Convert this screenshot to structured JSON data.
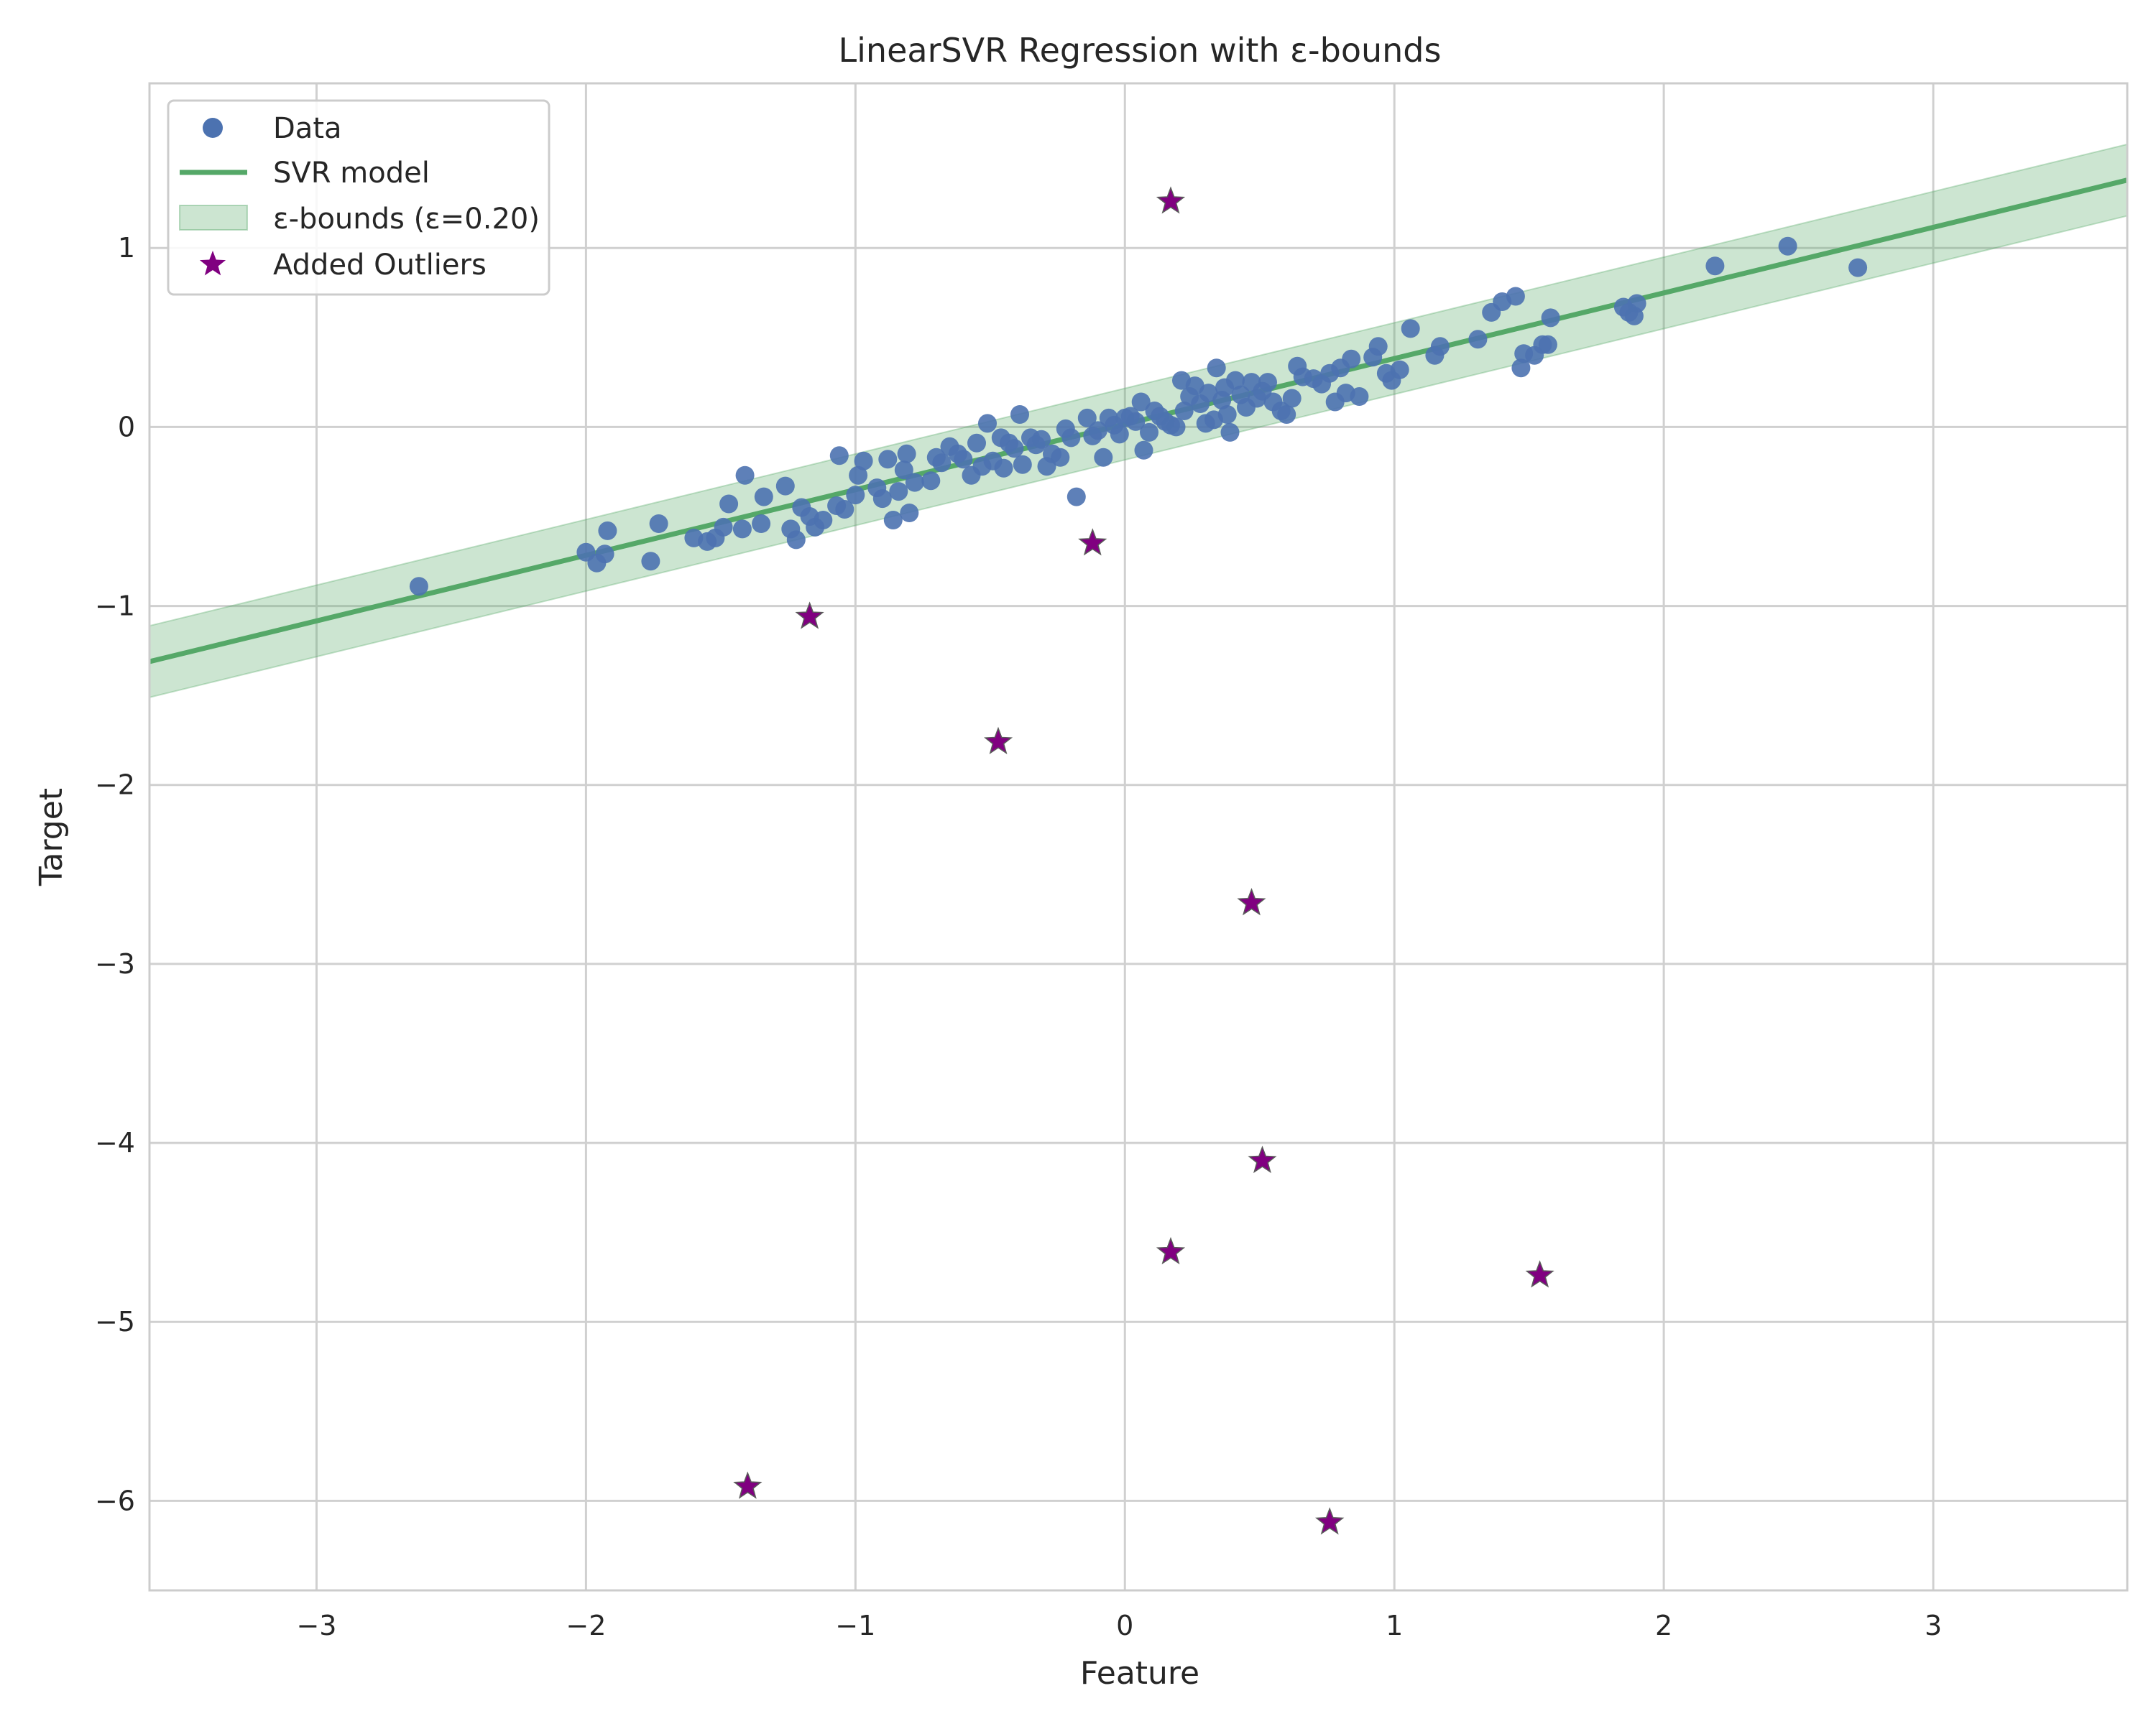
{
  "chart_data": {
    "type": "scatter",
    "title": "LinearSVR Regression with ε-bounds",
    "xlabel": "Feature",
    "ylabel": "Target",
    "xlim": [
      -3.62,
      3.72
    ],
    "ylim": [
      -6.5,
      1.92
    ],
    "xticks": [
      -3,
      -2,
      -1,
      0,
      1,
      2,
      3
    ],
    "xtick_labels": [
      "−3",
      "−2",
      "−1",
      "0",
      "1",
      "2",
      "3"
    ],
    "yticks": [
      1,
      0,
      -1,
      -2,
      -3,
      -4,
      -5,
      -6
    ],
    "ytick_labels": [
      "1",
      "0",
      "−1",
      "−2",
      "−3",
      "−4",
      "−5",
      "−6"
    ],
    "grid": true,
    "legend_position": "top-left",
    "colors": {
      "data": "#4c72b0",
      "model": "#55a868",
      "band": "#55a868",
      "outliers": "#800080",
      "grid": "#d0d0d0",
      "axes": "#cccccc"
    },
    "model": {
      "slope": 0.3665,
      "intercept": 0.016,
      "epsilon": 0.2
    },
    "series": [
      {
        "name": "Data",
        "type": "scatter",
        "points": [
          [
            -2.62,
            -0.89
          ],
          [
            -2.0,
            -0.7
          ],
          [
            -1.96,
            -0.76
          ],
          [
            -1.93,
            -0.71
          ],
          [
            -1.92,
            -0.58
          ],
          [
            -1.76,
            -0.75
          ],
          [
            -1.73,
            -0.54
          ],
          [
            -1.6,
            -0.62
          ],
          [
            -1.55,
            -0.64
          ],
          [
            -1.52,
            -0.62
          ],
          [
            -1.49,
            -0.56
          ],
          [
            -1.47,
            -0.43
          ],
          [
            -1.42,
            -0.57
          ],
          [
            -1.41,
            -0.27
          ],
          [
            -1.35,
            -0.54
          ],
          [
            -1.34,
            -0.39
          ],
          [
            -1.26,
            -0.33
          ],
          [
            -1.24,
            -0.57
          ],
          [
            -1.22,
            -0.63
          ],
          [
            -1.2,
            -0.45
          ],
          [
            -1.17,
            -0.5
          ],
          [
            -1.15,
            -0.56
          ],
          [
            -1.12,
            -0.52
          ],
          [
            -1.07,
            -0.44
          ],
          [
            -1.06,
            -0.16
          ],
          [
            -1.04,
            -0.46
          ],
          [
            -1.0,
            -0.38
          ],
          [
            -0.99,
            -0.27
          ],
          [
            -0.97,
            -0.19
          ],
          [
            -0.92,
            -0.34
          ],
          [
            -0.9,
            -0.4
          ],
          [
            -0.88,
            -0.18
          ],
          [
            -0.86,
            -0.52
          ],
          [
            -0.84,
            -0.36
          ],
          [
            -0.82,
            -0.24
          ],
          [
            -0.81,
            -0.15
          ],
          [
            -0.8,
            -0.48
          ],
          [
            -0.78,
            -0.31
          ],
          [
            -0.72,
            -0.3
          ],
          [
            -0.7,
            -0.17
          ],
          [
            -0.68,
            -0.2
          ],
          [
            -0.65,
            -0.11
          ],
          [
            -0.62,
            -0.15
          ],
          [
            -0.6,
            -0.18
          ],
          [
            -0.57,
            -0.27
          ],
          [
            -0.55,
            -0.09
          ],
          [
            -0.53,
            -0.22
          ],
          [
            -0.51,
            0.02
          ],
          [
            -0.49,
            -0.19
          ],
          [
            -0.46,
            -0.06
          ],
          [
            -0.45,
            -0.23
          ],
          [
            -0.43,
            -0.09
          ],
          [
            -0.41,
            -0.12
          ],
          [
            -0.39,
            0.07
          ],
          [
            -0.38,
            -0.21
          ],
          [
            -0.35,
            -0.06
          ],
          [
            -0.33,
            -0.1
          ],
          [
            -0.31,
            -0.07
          ],
          [
            -0.29,
            -0.22
          ],
          [
            -0.27,
            -0.15
          ],
          [
            -0.24,
            -0.17
          ],
          [
            -0.22,
            -0.01
          ],
          [
            -0.2,
            -0.06
          ],
          [
            -0.18,
            -0.39
          ],
          [
            -0.14,
            0.05
          ],
          [
            -0.12,
            -0.05
          ],
          [
            -0.1,
            -0.02
          ],
          [
            -0.08,
            -0.17
          ],
          [
            -0.06,
            0.05
          ],
          [
            -0.04,
            0.01
          ],
          [
            -0.02,
            -0.04
          ],
          [
            0.0,
            0.05
          ],
          [
            0.02,
            0.06
          ],
          [
            0.04,
            0.03
          ],
          [
            0.06,
            0.14
          ],
          [
            0.07,
            -0.13
          ],
          [
            0.09,
            -0.03
          ],
          [
            0.11,
            0.09
          ],
          [
            0.13,
            0.06
          ],
          [
            0.15,
            0.03
          ],
          [
            0.17,
            0.01
          ],
          [
            0.19,
            0.0
          ],
          [
            0.21,
            0.26
          ],
          [
            0.22,
            0.09
          ],
          [
            0.24,
            0.17
          ],
          [
            0.26,
            0.23
          ],
          [
            0.28,
            0.13
          ],
          [
            0.3,
            0.02
          ],
          [
            0.31,
            0.19
          ],
          [
            0.33,
            0.04
          ],
          [
            0.34,
            0.33
          ],
          [
            0.36,
            0.15
          ],
          [
            0.37,
            0.22
          ],
          [
            0.38,
            0.07
          ],
          [
            0.39,
            -0.03
          ],
          [
            0.41,
            0.26
          ],
          [
            0.43,
            0.18
          ],
          [
            0.45,
            0.11
          ],
          [
            0.47,
            0.25
          ],
          [
            0.49,
            0.16
          ],
          [
            0.51,
            0.2
          ],
          [
            0.53,
            0.25
          ],
          [
            0.55,
            0.14
          ],
          [
            0.58,
            0.09
          ],
          [
            0.6,
            0.07
          ],
          [
            0.62,
            0.16
          ],
          [
            0.64,
            0.34
          ],
          [
            0.66,
            0.28
          ],
          [
            0.7,
            0.27
          ],
          [
            0.73,
            0.24
          ],
          [
            0.76,
            0.3
          ],
          [
            0.78,
            0.14
          ],
          [
            0.8,
            0.33
          ],
          [
            0.82,
            0.19
          ],
          [
            0.84,
            0.38
          ],
          [
            0.87,
            0.17
          ],
          [
            0.92,
            0.39
          ],
          [
            0.94,
            0.45
          ],
          [
            0.97,
            0.3
          ],
          [
            0.99,
            0.26
          ],
          [
            1.02,
            0.32
          ],
          [
            1.06,
            0.55
          ],
          [
            1.15,
            0.4
          ],
          [
            1.17,
            0.45
          ],
          [
            1.31,
            0.49
          ],
          [
            1.36,
            0.64
          ],
          [
            1.4,
            0.7
          ],
          [
            1.45,
            0.73
          ],
          [
            1.47,
            0.33
          ],
          [
            1.48,
            0.41
          ],
          [
            1.52,
            0.4
          ],
          [
            1.55,
            0.46
          ],
          [
            1.57,
            0.46
          ],
          [
            1.58,
            0.61
          ],
          [
            1.85,
            0.67
          ],
          [
            1.87,
            0.64
          ],
          [
            1.89,
            0.62
          ],
          [
            1.9,
            0.69
          ],
          [
            2.19,
            0.9
          ],
          [
            2.46,
            1.01
          ],
          [
            2.72,
            0.89
          ]
        ]
      },
      {
        "name": "SVR model",
        "type": "line"
      },
      {
        "name": "ε-bounds (ε=0.20)",
        "type": "area"
      },
      {
        "name": "Added Outliers",
        "type": "scatter",
        "marker": "star",
        "points": [
          [
            0.17,
            1.26
          ],
          [
            -0.12,
            -0.65
          ],
          [
            -1.17,
            -1.06
          ],
          [
            -0.47,
            -1.76
          ],
          [
            0.47,
            -2.66
          ],
          [
            0.51,
            -4.1
          ],
          [
            0.17,
            -4.61
          ],
          [
            1.54,
            -4.74
          ],
          [
            -1.4,
            -5.92
          ],
          [
            0.76,
            -6.12
          ]
        ]
      }
    ]
  }
}
